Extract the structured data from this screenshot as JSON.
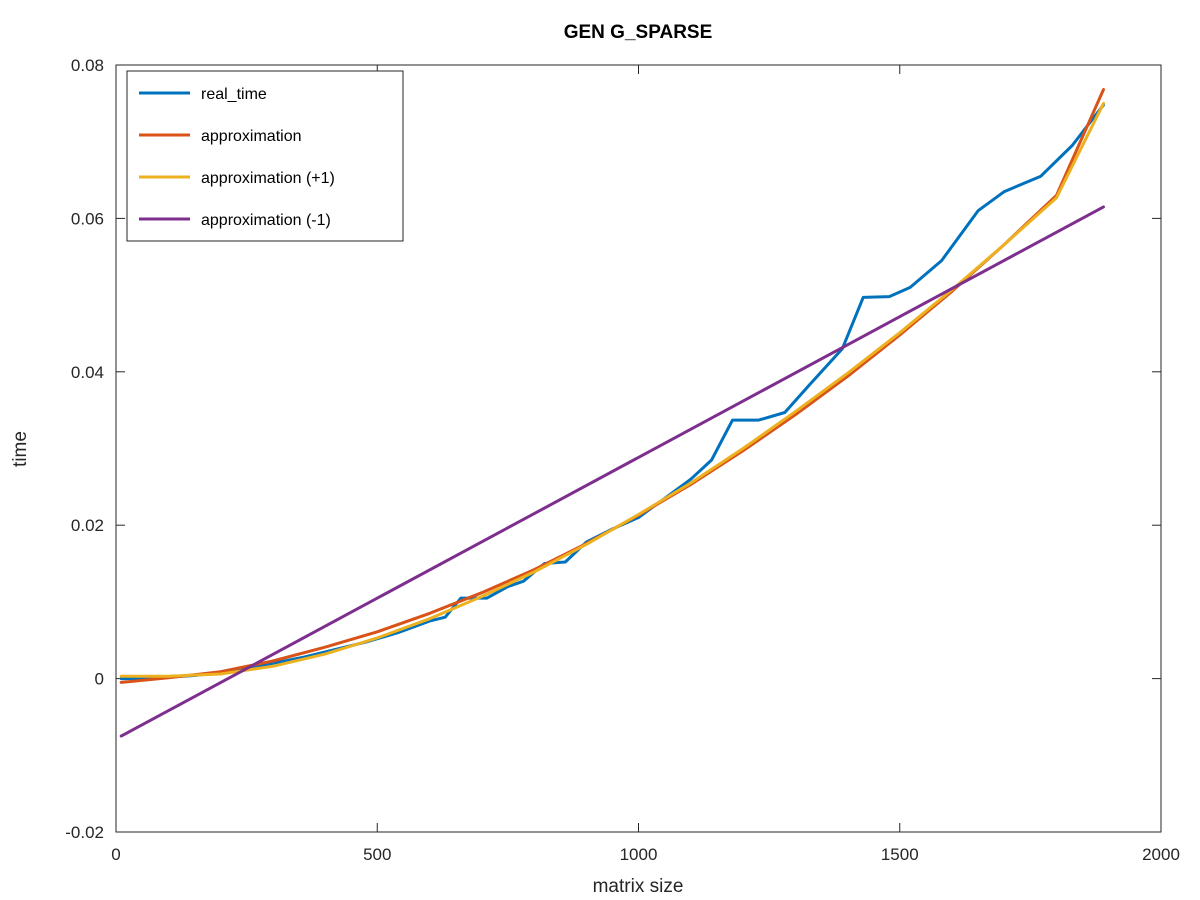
{
  "chart_data": {
    "type": "line",
    "title": "GEN G_SPARSE",
    "xlabel": "matrix size",
    "ylabel": "time",
    "xlim": [
      0,
      2000
    ],
    "ylim": [
      -0.02,
      0.08
    ],
    "xticks": [
      0,
      500,
      1000,
      1500,
      2000
    ],
    "yticks": [
      -0.02,
      0,
      0.02,
      0.04,
      0.06,
      0.08
    ],
    "xtick_labels": [
      "0",
      "500",
      "1000",
      "1500",
      "2000"
    ],
    "ytick_labels": [
      "-0.02",
      "0",
      "0.02",
      "0.04",
      "0.06",
      "0.08"
    ],
    "grid": false,
    "legend_position": "top-left",
    "series": [
      {
        "name": "real_time",
        "color": "#0072bd",
        "x": [
          10,
          50,
          100,
          150,
          200,
          260,
          300,
          360,
          420,
          480,
          540,
          600,
          630,
          660,
          710,
          750,
          780,
          820,
          860,
          900,
          950,
          1000,
          1050,
          1100,
          1140,
          1180,
          1230,
          1280,
          1330,
          1390,
          1430,
          1480,
          1520,
          1580,
          1650,
          1700,
          1770,
          1830,
          1890
        ],
        "y": [
          0.0,
          0.0,
          0.0002,
          0.0004,
          0.0008,
          0.0015,
          0.002,
          0.0028,
          0.0038,
          0.0048,
          0.006,
          0.0075,
          0.008,
          0.0105,
          0.0105,
          0.012,
          0.0127,
          0.015,
          0.0152,
          0.0178,
          0.0195,
          0.021,
          0.0235,
          0.026,
          0.0285,
          0.0337,
          0.0337,
          0.0347,
          0.0385,
          0.043,
          0.0497,
          0.0498,
          0.051,
          0.0545,
          0.061,
          0.0635,
          0.0655,
          0.0695,
          0.0748
        ]
      },
      {
        "name": "approximation",
        "color": "#d95319",
        "x": [
          10,
          100,
          200,
          300,
          400,
          500,
          600,
          700,
          800,
          900,
          1000,
          1100,
          1200,
          1300,
          1400,
          1500,
          1600,
          1700,
          1800,
          1890
        ],
        "y": [
          -0.0005,
          0.0001,
          0.0009,
          0.0023,
          0.0041,
          0.0061,
          0.0085,
          0.0112,
          0.0142,
          0.0176,
          0.0213,
          0.0253,
          0.0297,
          0.0344,
          0.0394,
          0.0448,
          0.0505,
          0.0566,
          0.063,
          0.0768
        ]
      },
      {
        "name": "approximation (+1)",
        "color": "#edb120",
        "x": [
          10,
          100,
          200,
          300,
          400,
          500,
          600,
          700,
          800,
          900,
          1000,
          1100,
          1200,
          1300,
          1400,
          1500,
          1600,
          1700,
          1800,
          1890
        ],
        "y": [
          0.0003,
          0.0003,
          0.0006,
          0.0016,
          0.0032,
          0.0053,
          0.0078,
          0.0107,
          0.0139,
          0.0175,
          0.0214,
          0.0255,
          0.03,
          0.0348,
          0.0398,
          0.0451,
          0.0507,
          0.0566,
          0.0627,
          0.075
        ]
      },
      {
        "name": "approximation (-1)",
        "color": "#7e2f8e",
        "x": [
          10,
          1890
        ],
        "y": [
          -0.0075,
          0.0615
        ]
      }
    ]
  }
}
